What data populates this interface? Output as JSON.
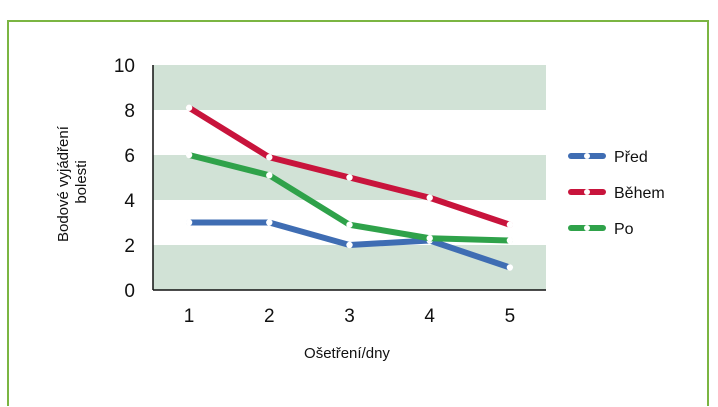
{
  "chart_data": {
    "type": "line",
    "x": [
      1,
      2,
      3,
      4,
      5
    ],
    "xlabel": "Ošetření/dny",
    "ylabel_lines": [
      "Bodové vyjádření",
      "bolesti"
    ],
    "ylim": [
      0,
      10
    ],
    "yticks": [
      0,
      2,
      4,
      6,
      8,
      10
    ],
    "grid": "alternating horizontal bands",
    "legend_position": "right",
    "series": [
      {
        "name": "Před",
        "color": "#3f6db3",
        "values": [
          3.0,
          3.0,
          2.0,
          2.2,
          1.0
        ]
      },
      {
        "name": "Během",
        "color": "#c8143c",
        "values": [
          8.1,
          5.9,
          5.0,
          4.1,
          2.9
        ]
      },
      {
        "name": "Po",
        "color": "#2fa24a",
        "values": [
          6.0,
          5.1,
          2.9,
          2.3,
          2.2
        ]
      }
    ]
  },
  "colors": {
    "frame_border": "#7bb542",
    "band": "#d1e2d6"
  }
}
